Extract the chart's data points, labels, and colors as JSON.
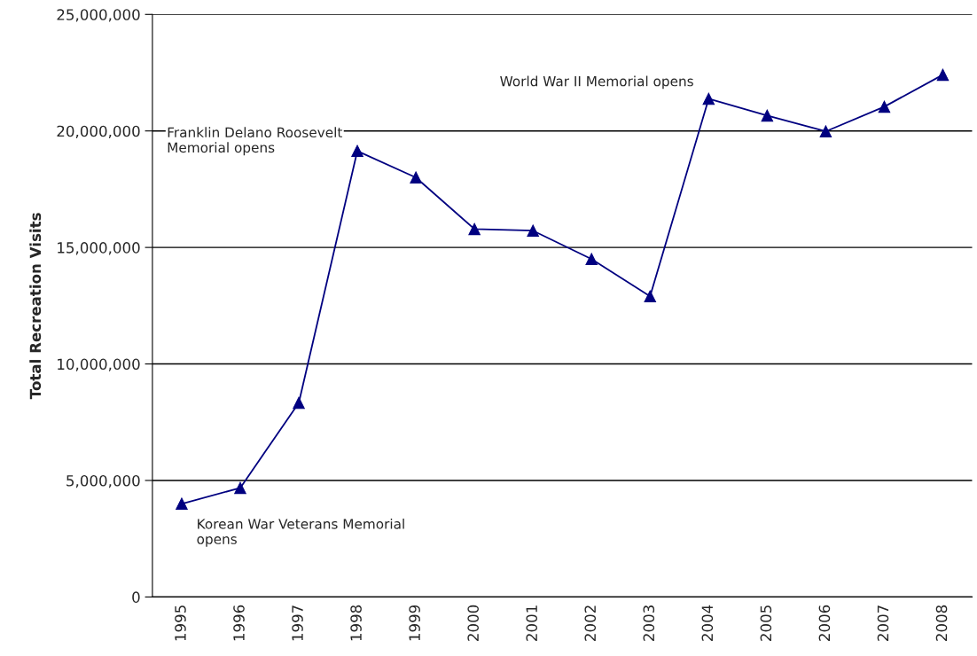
{
  "chart_data": {
    "type": "line",
    "ylabel": "Total Recreation Visits",
    "categories": [
      "1995",
      "1996",
      "1997",
      "1998",
      "1999",
      "2000",
      "2001",
      "2002",
      "2003",
      "2004",
      "2005",
      "2006",
      "2007",
      "2008"
    ],
    "series": [
      {
        "color": "#000080",
        "values": [
          4000000,
          4680000,
          8330000,
          19140000,
          18000000,
          15790000,
          15720000,
          14500000,
          12900000,
          21380000,
          20660000,
          19980000,
          21040000,
          22410000
        ]
      }
    ],
    "ylim": [
      0,
      25000000
    ],
    "yticks": [
      {
        "value": 0,
        "label": "0"
      },
      {
        "value": 5000000,
        "label": "5,000,000"
      },
      {
        "value": 10000000,
        "label": "10,000,000"
      },
      {
        "value": 15000000,
        "label": "15,000,000"
      },
      {
        "value": 20000000,
        "label": "20,000,000"
      },
      {
        "value": 25000000,
        "label": "25,000,000"
      }
    ],
    "grid": "y",
    "marker": "triangle",
    "line_style": "solid",
    "legend": false,
    "annotations": [
      {
        "text": "Korean War Veterans Memorial\nopens",
        "x": "1995",
        "y": 4000000
      },
      {
        "text": "Franklin Delano Roosevelt\nMemorial opens",
        "x": "1998",
        "y": 19140000
      },
      {
        "text": "World War II Memorial opens",
        "x": "2004",
        "y": 21380000
      }
    ]
  }
}
